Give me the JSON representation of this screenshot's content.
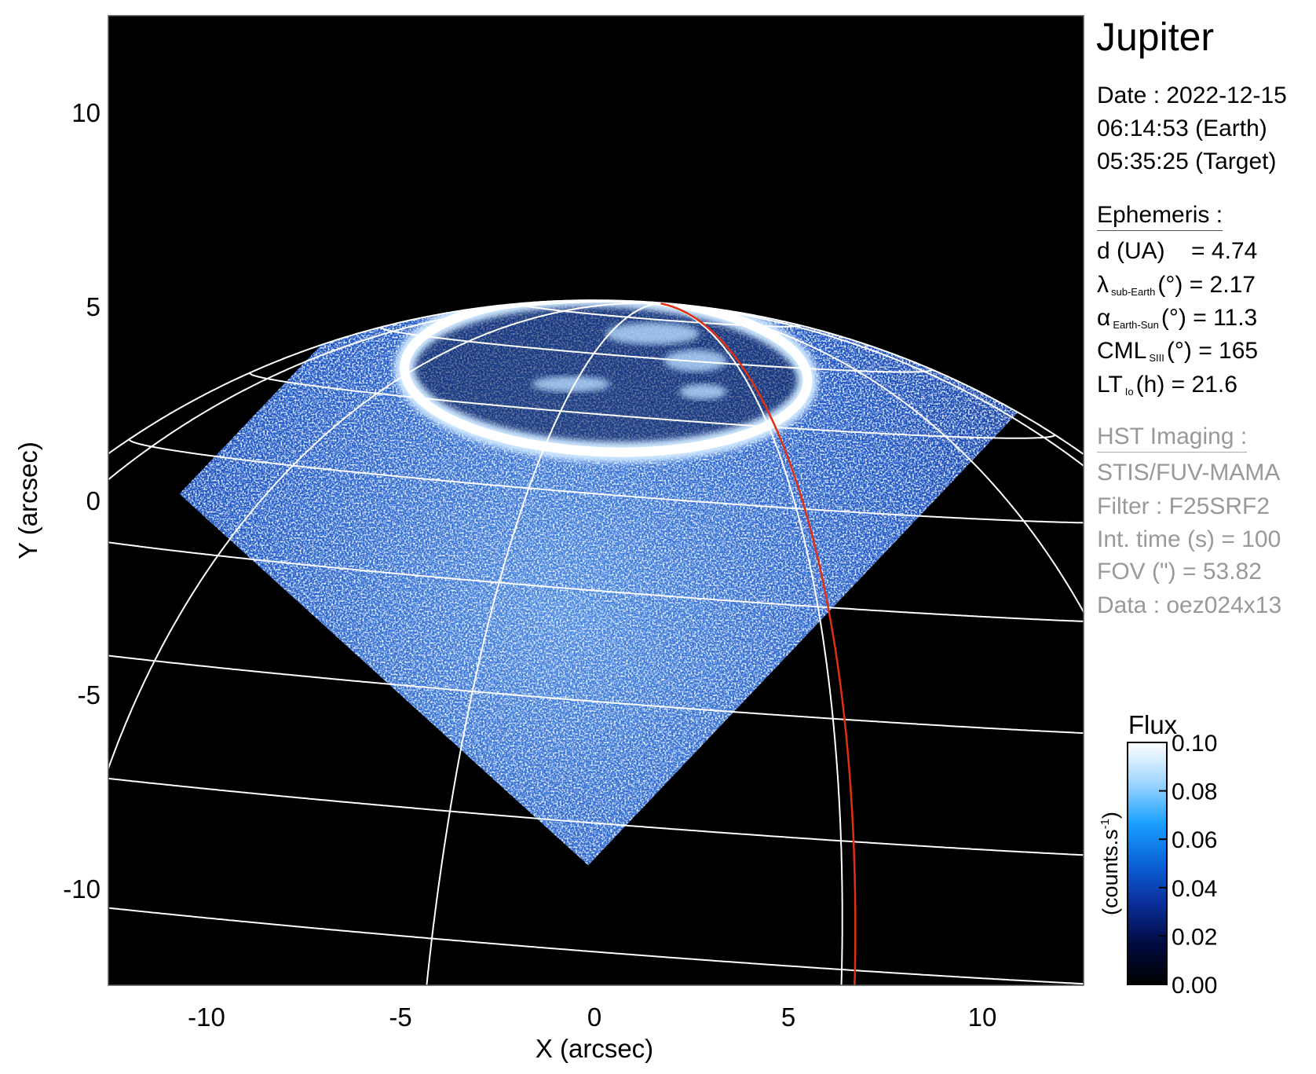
{
  "chart_data": {
    "type": "heatmap",
    "description_title": "",
    "xlabel": "X (arcsec)",
    "ylabel": "Y (arcsec)",
    "xlim": [
      -12.57,
      12.57
    ],
    "ylim": [
      -12.5,
      12.5
    ],
    "xticks": [
      -10,
      -5,
      0,
      5,
      10
    ],
    "yticks": [
      -10,
      -5,
      0,
      5,
      10
    ],
    "xtick_labels": [
      "-10",
      "-5",
      "0",
      "5",
      "10"
    ],
    "ytick_labels": [
      "-10",
      "-5",
      "0",
      "5",
      "10"
    ],
    "grid": {
      "latitudes_deg": [
        10,
        20,
        30,
        40,
        50,
        60,
        70,
        80
      ],
      "longitude_step_deg": 30,
      "color": "#ffffff"
    },
    "highlight_meridian_color": "#e03010",
    "background_color": "#000000",
    "colorbar": {
      "title": "Flux",
      "label": "(counts.s",
      "label_sup": "-1",
      "label_close": ")",
      "range": [
        0.0,
        0.1
      ],
      "ticks": [
        "0.10",
        "0.08",
        "0.06",
        "0.04",
        "0.02",
        "0.00"
      ],
      "colors": [
        "#000000",
        "#000a40",
        "#0a2e9a",
        "#0a64d8",
        "#1aa0ff",
        "#9fd6ff",
        "#ffffff"
      ]
    }
  },
  "panel": {
    "target": "Jupiter",
    "date_line": "Date : 2022-12-15",
    "earth_time": "06:14:53 (Earth)",
    "target_time": "05:35:25 (Target)",
    "ephemeris_header": "Ephemeris :",
    "ephemeris": {
      "d": {
        "label": "d (UA)",
        "value": "= 4.74"
      },
      "lambda": {
        "sym": "λ",
        "sub": "sub-Earth",
        "unit": "(°)",
        "value": "= 2.17"
      },
      "alpha": {
        "sym": "α",
        "sub": "Earth-Sun",
        "unit": "(°)",
        "value": "= 11.3"
      },
      "cml": {
        "sym": "CML",
        "sub": "SIII",
        "unit": "(°)",
        "value": "= 165"
      },
      "lt": {
        "sym": "LT",
        "sub": "Io",
        "unit": "(h)",
        "value": "= 21.6"
      }
    },
    "imaging_header": "HST Imaging :",
    "instrument": "STIS/FUV-MAMA",
    "filter": "Filter : F25SRF2",
    "int_time": "Int. time (s) = 100",
    "fov": "FOV (\") = 53.82",
    "data_id": "Data : oez024x13"
  }
}
